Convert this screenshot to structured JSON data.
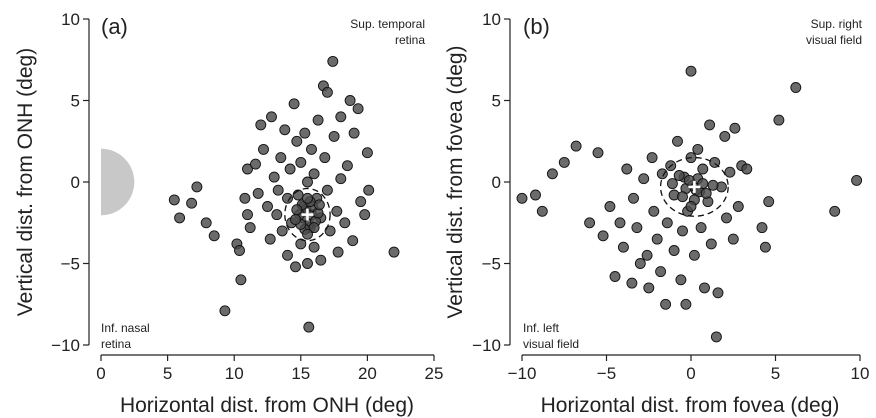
{
  "colors": {
    "point_fill": "#4a4a4a",
    "point_edge": "#111111",
    "optic_disc": "#c8c8c8",
    "mean_marker": "#ffffff"
  },
  "chart_data": [
    {
      "type": "scatter",
      "panel_label": "(a)",
      "xlabel": "Horizontal dist. from ONH (deg)",
      "ylabel": "Vertical dist. from ONH (deg)",
      "xlim": [
        0,
        25
      ],
      "ylim": [
        -10,
        10
      ],
      "xticks": [
        "0",
        "5",
        "10",
        "15",
        "20",
        "25"
      ],
      "yticks": [
        "−10",
        "−5",
        "0",
        "5",
        "10"
      ],
      "annotation_top_right": [
        "Sup. temporal",
        "retina"
      ],
      "annotation_bottom_left": [
        "Inf. nasal",
        "retina"
      ],
      "optic_disc": {
        "center": [
          0,
          0
        ],
        "radius_deg": 2.5
      },
      "mean": [
        15.5,
        -2.0
      ],
      "ellipse": {
        "center": [
          15.5,
          -2.0
        ],
        "rx": 1.7,
        "ry": 1.6
      },
      "points": [
        [
          5.5,
          -1.1
        ],
        [
          5.9,
          -2.2
        ],
        [
          6.8,
          -1.3
        ],
        [
          7.2,
          -0.3
        ],
        [
          7.9,
          -2.5
        ],
        [
          8.5,
          -3.3
        ],
        [
          9.3,
          -7.9
        ],
        [
          10.2,
          -3.8
        ],
        [
          10.4,
          -4.2
        ],
        [
          10.5,
          -6.0
        ],
        [
          10.8,
          -1.0
        ],
        [
          11.0,
          -2.0
        ],
        [
          11.0,
          0.8
        ],
        [
          11.2,
          -2.8
        ],
        [
          11.6,
          1.1
        ],
        [
          11.8,
          -0.7
        ],
        [
          12.0,
          3.5
        ],
        [
          12.2,
          2.0
        ],
        [
          12.5,
          -1.5
        ],
        [
          12.7,
          -3.5
        ],
        [
          12.8,
          4.0
        ],
        [
          13.0,
          0.3
        ],
        [
          13.2,
          -2.0
        ],
        [
          13.3,
          -0.5
        ],
        [
          13.5,
          1.5
        ],
        [
          13.6,
          -3.0
        ],
        [
          13.8,
          3.2
        ],
        [
          14.0,
          -1.0
        ],
        [
          14.0,
          -4.5
        ],
        [
          14.2,
          0.8
        ],
        [
          14.3,
          -2.5
        ],
        [
          14.5,
          4.8
        ],
        [
          14.6,
          -5.2
        ],
        [
          14.7,
          2.5
        ],
        [
          14.8,
          -0.8
        ],
        [
          15.0,
          -3.8
        ],
        [
          15.0,
          1.2
        ],
        [
          15.2,
          -1.5
        ],
        [
          15.3,
          3.0
        ],
        [
          15.5,
          -5.0
        ],
        [
          15.5,
          0.0
        ],
        [
          15.6,
          -8.9
        ],
        [
          15.7,
          -2.8
        ],
        [
          15.8,
          2.0
        ],
        [
          16.0,
          -4.0
        ],
        [
          16.0,
          0.5
        ],
        [
          16.2,
          -1.0
        ],
        [
          16.3,
          3.8
        ],
        [
          16.5,
          -2.2
        ],
        [
          16.5,
          -4.8
        ],
        [
          16.7,
          5.9
        ],
        [
          16.8,
          1.5
        ],
        [
          17.0,
          -0.5
        ],
        [
          17.0,
          5.5
        ],
        [
          17.2,
          -3.0
        ],
        [
          17.4,
          7.4
        ],
        [
          17.5,
          2.8
        ],
        [
          17.7,
          -1.8
        ],
        [
          17.8,
          -4.3
        ],
        [
          18.0,
          4.0
        ],
        [
          18.0,
          0.2
        ],
        [
          18.3,
          -2.5
        ],
        [
          18.5,
          1.0
        ],
        [
          18.7,
          5.0
        ],
        [
          18.9,
          -3.6
        ],
        [
          19.0,
          3.0
        ],
        [
          19.3,
          4.5
        ],
        [
          19.5,
          -1.2
        ],
        [
          19.8,
          -2.0
        ],
        [
          20.0,
          1.8
        ],
        [
          20.1,
          -0.5
        ],
        [
          22.0,
          -4.3
        ],
        [
          15.2,
          -2.2
        ],
        [
          15.4,
          -1.7
        ],
        [
          15.8,
          -2.0
        ],
        [
          15.6,
          -2.6
        ],
        [
          15.1,
          -1.4
        ],
        [
          15.9,
          -1.5
        ],
        [
          14.9,
          -2.0
        ],
        [
          16.1,
          -2.4
        ],
        [
          15.3,
          -2.9
        ],
        [
          15.7,
          -1.2
        ],
        [
          14.7,
          -1.7
        ],
        [
          16.3,
          -1.9
        ],
        [
          15.0,
          -2.6
        ],
        [
          16.0,
          -2.8
        ],
        [
          14.6,
          -2.3
        ],
        [
          16.4,
          -1.4
        ],
        [
          15.5,
          -1.0
        ],
        [
          15.5,
          -3.2
        ]
      ]
    },
    {
      "type": "scatter",
      "panel_label": "(b)",
      "xlabel": "Horizontal dist. from fovea (deg)",
      "ylabel": "Vertical dist. from fovea (deg)",
      "xlim": [
        -10,
        10
      ],
      "ylim": [
        -10,
        10
      ],
      "xticks": [
        "−10",
        "−5",
        "0",
        "5",
        "10"
      ],
      "yticks": [
        "−10",
        "−5",
        "0",
        "5",
        "10"
      ],
      "annotation_top_right": [
        "Sup. right",
        "visual field"
      ],
      "annotation_bottom_left": [
        "Inf. left",
        "visual field"
      ],
      "mean": [
        0.2,
        -0.3
      ],
      "ellipse": {
        "center": [
          0.2,
          -0.3
        ],
        "rx": 2.0,
        "ry": 1.8
      },
      "points": [
        [
          -10.0,
          -1.0
        ],
        [
          -9.2,
          -0.8
        ],
        [
          -8.8,
          -1.8
        ],
        [
          -8.2,
          0.5
        ],
        [
          -7.5,
          1.2
        ],
        [
          -6.8,
          2.2
        ],
        [
          -6.0,
          -2.5
        ],
        [
          -5.5,
          1.8
        ],
        [
          -5.2,
          -3.3
        ],
        [
          -4.8,
          -1.5
        ],
        [
          -4.5,
          -5.8
        ],
        [
          -4.2,
          -2.5
        ],
        [
          -4.0,
          -4.0
        ],
        [
          -3.8,
          0.8
        ],
        [
          -3.5,
          -6.2
        ],
        [
          -3.4,
          -1.0
        ],
        [
          -3.2,
          -2.8
        ],
        [
          -3.0,
          -5.0
        ],
        [
          -2.8,
          0.2
        ],
        [
          -2.6,
          -4.5
        ],
        [
          -2.5,
          -6.5
        ],
        [
          -2.3,
          1.5
        ],
        [
          -2.2,
          -1.8
        ],
        [
          -2.0,
          -3.5
        ],
        [
          -1.8,
          -5.5
        ],
        [
          -1.7,
          0.5
        ],
        [
          -1.5,
          -7.5
        ],
        [
          -1.4,
          -2.5
        ],
        [
          -1.2,
          1.0
        ],
        [
          -1.0,
          -4.2
        ],
        [
          -1.0,
          -0.8
        ],
        [
          -0.8,
          2.5
        ],
        [
          -0.6,
          -6.0
        ],
        [
          -0.5,
          -3.0
        ],
        [
          -0.4,
          0.3
        ],
        [
          -0.3,
          -7.5
        ],
        [
          -0.2,
          -1.8
        ],
        [
          0.0,
          1.5
        ],
        [
          0.0,
          6.8
        ],
        [
          0.2,
          -4.5
        ],
        [
          0.3,
          -0.5
        ],
        [
          0.4,
          2.0
        ],
        [
          0.6,
          -2.8
        ],
        [
          0.7,
          0.8
        ],
        [
          0.8,
          -6.5
        ],
        [
          1.0,
          -1.2
        ],
        [
          1.1,
          3.5
        ],
        [
          1.2,
          -3.8
        ],
        [
          1.4,
          1.2
        ],
        [
          1.5,
          -9.5
        ],
        [
          1.6,
          -6.8
        ],
        [
          1.8,
          -0.3
        ],
        [
          2.0,
          2.8
        ],
        [
          2.1,
          -2.2
        ],
        [
          2.3,
          0.6
        ],
        [
          2.5,
          -3.5
        ],
        [
          2.6,
          3.3
        ],
        [
          2.8,
          -1.5
        ],
        [
          3.0,
          1.0
        ],
        [
          3.3,
          0.8
        ],
        [
          4.2,
          -2.8
        ],
        [
          4.4,
          -4.0
        ],
        [
          4.6,
          -1.2
        ],
        [
          5.2,
          3.8
        ],
        [
          6.2,
          5.8
        ],
        [
          8.5,
          -1.8
        ],
        [
          9.8,
          0.1
        ],
        [
          0.1,
          -0.2
        ],
        [
          0.5,
          -0.6
        ],
        [
          -0.3,
          -0.4
        ],
        [
          0.4,
          0.2
        ],
        [
          -0.1,
          0.1
        ],
        [
          0.7,
          -0.1
        ],
        [
          -0.5,
          -0.9
        ],
        [
          0.9,
          -0.7
        ],
        [
          0.2,
          -1.1
        ],
        [
          -0.7,
          0.4
        ],
        [
          1.3,
          -0.2
        ],
        [
          0.0,
          -1.5
        ],
        [
          -1.1,
          -0.1
        ]
      ]
    }
  ]
}
